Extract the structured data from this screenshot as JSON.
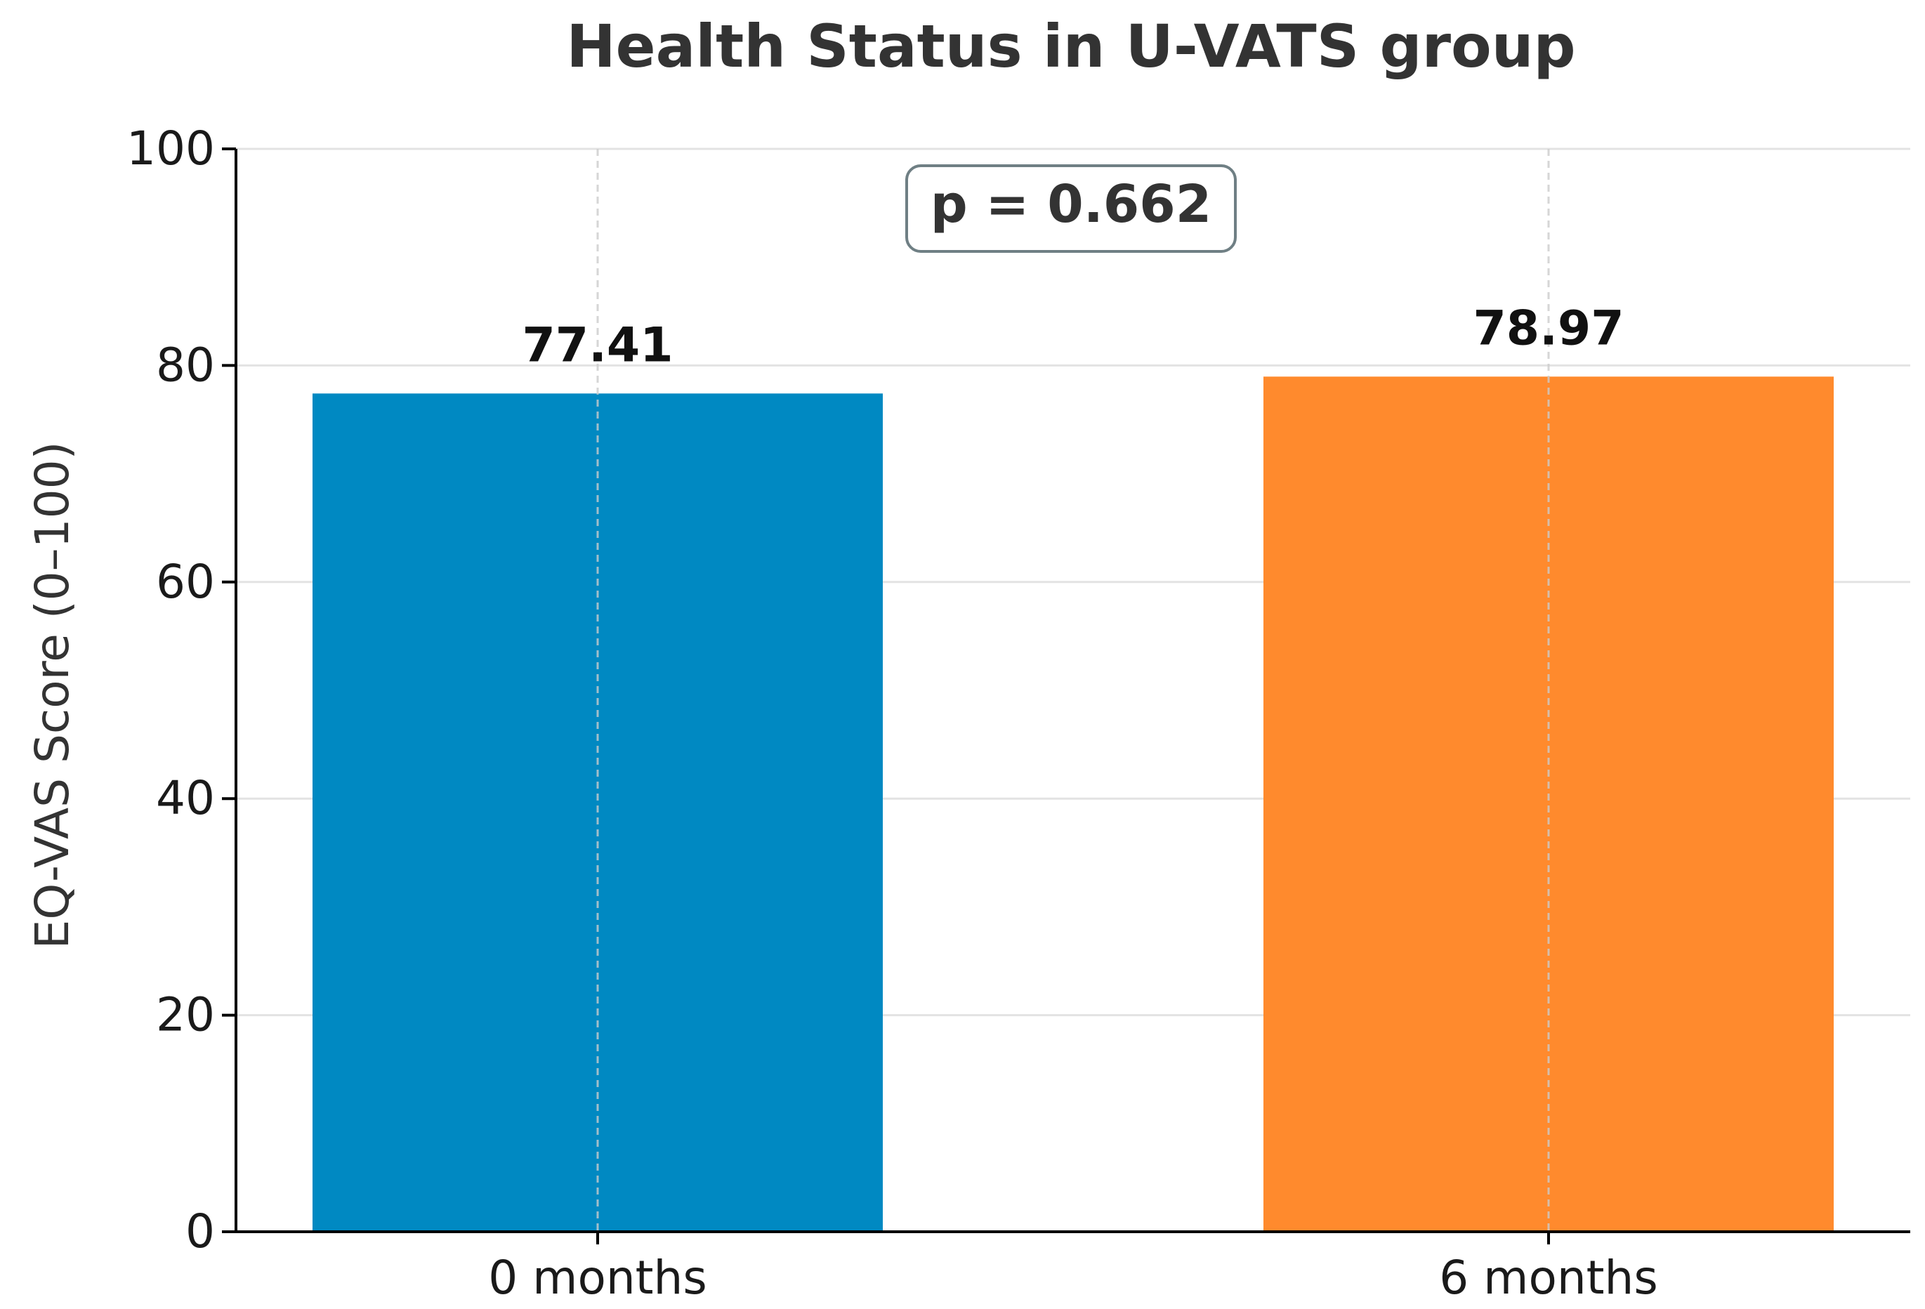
{
  "chart_data": {
    "type": "bar",
    "title": "Health Status in U-VATS group",
    "xlabel": "",
    "ylabel": "EQ-VAS Score (0–100)",
    "categories": [
      "0 months",
      "6 months"
    ],
    "values": [
      77.41,
      78.97
    ],
    "value_labels": [
      "77.41",
      "78.97"
    ],
    "bar_colors": [
      "#0089c2",
      "#ff8a2d"
    ],
    "ylim": [
      0,
      100
    ],
    "yticks": [
      0,
      20,
      40,
      60,
      80,
      100
    ],
    "ytick_labels": [
      "0",
      "20",
      "40",
      "60",
      "80",
      "100"
    ],
    "grid": true,
    "legend": "none",
    "annotation": "p = 0.662"
  },
  "colors": {
    "grid": "#e3e3e3",
    "vgrid": "#cccccc",
    "axis": "#000000",
    "annotation_border": "#6f7f84",
    "title": "#333333"
  }
}
